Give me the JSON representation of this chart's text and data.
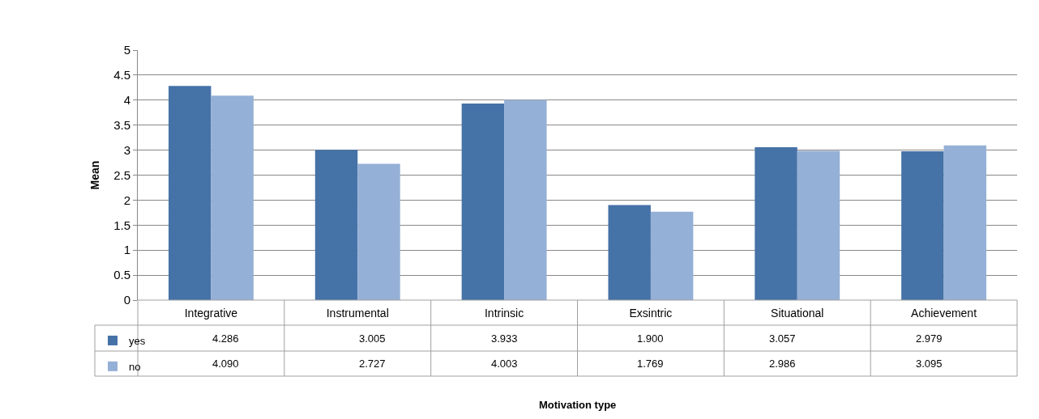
{
  "chart_data": {
    "type": "bar",
    "annotations": [
      "Motivation type"
    ],
    "ylabel": "Mean",
    "categories": [
      "Integrative",
      "Instrumental",
      "Intrinsic",
      "Exsintric",
      "Situational",
      "Achievement"
    ],
    "series": [
      {
        "name": "yes",
        "color": "#4572a7",
        "values": [
          4.286,
          3.005,
          3.933,
          1.9,
          3.057,
          2.979
        ],
        "value_labels": [
          "4.286",
          "3.005",
          "3.933",
          "1.900",
          "3.057",
          "2.979"
        ]
      },
      {
        "name": "no",
        "color": "#95b0d6",
        "values": [
          4.09,
          2.727,
          4.003,
          1.769,
          2.986,
          3.095
        ],
        "value_labels": [
          "4.090",
          "2.727",
          "4.003",
          "1.769",
          "2.986",
          "3.095"
        ]
      }
    ],
    "ylim": [
      0,
      5
    ],
    "yticks": [
      0,
      0.5,
      1,
      1.5,
      2,
      2.5,
      3,
      3.5,
      4,
      4.5,
      5
    ],
    "grid": "y",
    "legend": "bottom left"
  }
}
